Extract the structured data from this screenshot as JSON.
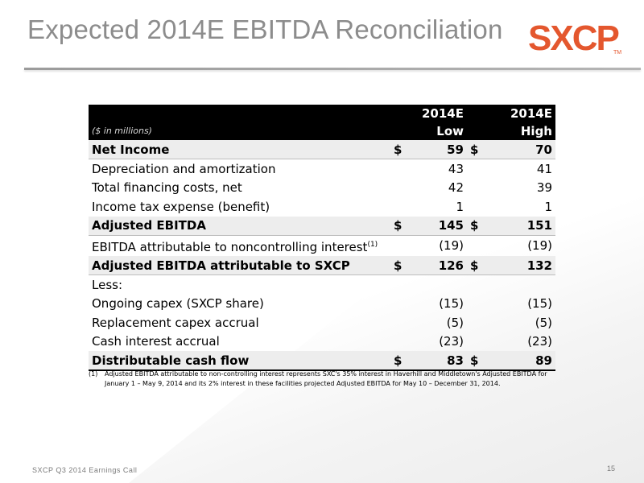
{
  "title": "Expected 2014E EBITDA Reconciliation",
  "logo": {
    "text": "SXCP",
    "tm": "TM",
    "color": "#e4572e"
  },
  "table": {
    "units": "($ in millions)",
    "columns": [
      {
        "line1": "2014E",
        "line2": "Low"
      },
      {
        "line1": "2014E",
        "line2": "High"
      }
    ],
    "rows": [
      {
        "label": "Net Income",
        "bold": true,
        "cur_low": "$",
        "low": "59",
        "cur_high": "$",
        "high": "70"
      },
      {
        "label": "Depreciation and amortization",
        "bold": false,
        "cur_low": "",
        "low": "43",
        "cur_high": "",
        "high": "41"
      },
      {
        "label": "Total financing costs, net",
        "bold": false,
        "cur_low": "",
        "low": "42",
        "cur_high": "",
        "high": "39"
      },
      {
        "label": "Income tax expense (benefit)",
        "bold": false,
        "cur_low": "",
        "low": "1",
        "cur_high": "",
        "high": "1"
      },
      {
        "label": "Adjusted EBITDA",
        "bold": true,
        "cur_low": "$",
        "low": "145",
        "cur_high": "$",
        "high": "151"
      },
      {
        "label": "EBITDA attributable to noncontrolling interest",
        "sup": "(1)",
        "bold": false,
        "cur_low": "",
        "low": "(19)",
        "cur_high": "",
        "high": "(19)"
      },
      {
        "label": "Adjusted EBITDA attributable to SXCP",
        "bold": true,
        "cur_low": "$",
        "low": "126",
        "cur_high": "$",
        "high": "132"
      },
      {
        "label": "Less:",
        "bold": false,
        "cur_low": "",
        "low": "",
        "cur_high": "",
        "high": ""
      },
      {
        "label": "Ongoing capex (SXCP share)",
        "bold": false,
        "cur_low": "",
        "low": "(15)",
        "cur_high": "",
        "high": "(15)"
      },
      {
        "label": "Replacement capex accrual",
        "bold": false,
        "cur_low": "",
        "low": "(5)",
        "cur_high": "",
        "high": "(5)"
      },
      {
        "label": "Cash interest accrual",
        "bold": false,
        "cur_low": "",
        "low": "(23)",
        "cur_high": "",
        "high": "(23)"
      },
      {
        "label": "Distributable cash flow",
        "bold": true,
        "final": true,
        "cur_low": "$",
        "low": "83",
        "cur_high": "$",
        "high": "89"
      }
    ]
  },
  "footnote": {
    "mark": "(1)",
    "text": "Adjusted EBITDA attributable to non-controlling interest represents SXC's 35% interest in Haverhill and Middletown's Adjusted EBITDA for January 1 – May 9, 2014 and its 2% interest in these facilities projected Adjusted EBITDA for May 10 – December 31, 2014."
  },
  "footer": {
    "left": "SXCP Q3 2014 Earnings Call",
    "page": "15"
  }
}
